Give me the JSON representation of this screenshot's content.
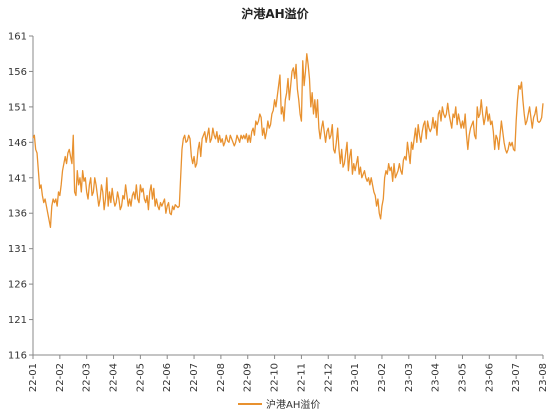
{
  "chart_data": {
    "type": "line",
    "title": "沪港AH溢价",
    "xlabel": "",
    "ylabel": "",
    "ylim": [
      116,
      161
    ],
    "y_ticks": [
      116,
      121,
      126,
      131,
      136,
      141,
      146,
      151,
      156,
      161
    ],
    "x_ticks": [
      "22-01",
      "22-02",
      "22-03",
      "22-04",
      "22-05",
      "22-06",
      "22-07",
      "22-08",
      "22-09",
      "22-10",
      "22-11",
      "22-12",
      "23-01",
      "23-02",
      "23-03",
      "23-04",
      "23-05",
      "23-06",
      "23-07",
      "23-08"
    ],
    "grid": false,
    "legend_position": "bottom-center",
    "series": [
      {
        "name": "沪港AH溢价",
        "color": "#E8912F",
        "x": [
          0,
          0.05,
          0.1,
          0.15,
          0.2,
          0.25,
          0.3,
          0.35,
          0.4,
          0.45,
          0.5,
          0.55,
          0.6,
          0.65,
          0.7,
          0.75,
          0.8,
          0.85,
          0.9,
          0.95,
          1.0,
          1.05,
          1.1,
          1.15,
          1.2,
          1.25,
          1.3,
          1.35,
          1.4,
          1.45,
          1.5,
          1.55,
          1.6,
          1.65,
          1.7,
          1.75,
          1.8,
          1.85,
          1.9,
          1.95,
          2.0,
          2.05,
          2.1,
          2.15,
          2.2,
          2.25,
          2.3,
          2.35,
          2.4,
          2.45,
          2.5,
          2.55,
          2.6,
          2.65,
          2.7,
          2.75,
          2.8,
          2.85,
          2.9,
          2.95,
          3.0,
          3.05,
          3.1,
          3.15,
          3.2,
          3.25,
          3.3,
          3.35,
          3.4,
          3.45,
          3.5,
          3.55,
          3.6,
          3.65,
          3.7,
          3.75,
          3.8,
          3.85,
          3.9,
          3.95,
          4.0,
          4.05,
          4.1,
          4.15,
          4.2,
          4.25,
          4.3,
          4.35,
          4.4,
          4.45,
          4.5,
          4.55,
          4.6,
          4.65,
          4.7,
          4.75,
          4.8,
          4.85,
          4.9,
          4.95,
          5.0,
          5.05,
          5.1,
          5.15,
          5.2,
          5.25,
          5.3,
          5.35,
          5.4,
          5.45,
          5.5,
          5.55,
          5.6,
          5.65,
          5.7,
          5.75,
          5.8,
          5.85,
          5.9,
          5.95,
          6.0,
          6.05,
          6.1,
          6.15,
          6.2,
          6.25,
          6.3,
          6.35,
          6.4,
          6.45,
          6.5,
          6.55,
          6.6,
          6.65,
          6.7,
          6.75,
          6.8,
          6.85,
          6.9,
          6.95,
          7.0,
          7.05,
          7.1,
          7.15,
          7.2,
          7.25,
          7.3,
          7.35,
          7.4,
          7.45,
          7.5,
          7.55,
          7.6,
          7.65,
          7.7,
          7.75,
          7.8,
          7.85,
          7.9,
          7.95,
          8.0,
          8.05,
          8.1,
          8.15,
          8.2,
          8.25,
          8.3,
          8.35,
          8.4,
          8.45,
          8.5,
          8.55,
          8.6,
          8.65,
          8.7,
          8.75,
          8.8,
          8.85,
          8.9,
          8.95,
          9.0,
          9.05,
          9.1,
          9.15,
          9.2,
          9.25,
          9.3,
          9.35,
          9.4,
          9.45,
          9.5,
          9.55,
          9.6,
          9.65,
          9.7,
          9.75,
          9.8,
          9.85,
          9.9,
          9.95,
          10.0,
          10.05,
          10.1,
          10.15,
          10.2,
          10.25,
          10.3,
          10.35,
          10.4,
          10.45,
          10.5,
          10.55,
          10.6,
          10.65,
          10.7,
          10.75,
          10.8,
          10.85,
          10.9,
          10.95,
          11.0,
          11.05,
          11.1,
          11.15,
          11.2,
          11.25,
          11.3,
          11.35,
          11.4,
          11.45,
          11.5,
          11.55,
          11.6,
          11.65,
          11.7,
          11.75,
          11.8,
          11.85,
          11.9,
          11.95,
          12.0,
          12.05,
          12.1,
          12.15,
          12.2,
          12.25,
          12.3,
          12.35,
          12.4,
          12.45,
          12.5,
          12.55,
          12.6,
          12.65,
          12.7,
          12.75,
          12.8,
          12.85,
          12.9,
          12.95,
          13.0,
          13.05,
          13.1,
          13.15,
          13.2,
          13.25,
          13.3,
          13.35,
          13.4,
          13.45,
          13.5,
          13.55,
          13.6,
          13.65,
          13.7,
          13.75,
          13.8,
          13.85,
          13.9,
          13.95,
          14.0,
          14.05,
          14.1,
          14.15,
          14.2,
          14.25,
          14.3,
          14.35,
          14.4,
          14.45,
          14.5,
          14.55,
          14.6,
          14.65,
          14.7,
          14.75,
          14.8,
          14.85,
          14.9,
          14.95,
          15.0,
          15.05,
          15.1,
          15.15,
          15.2,
          15.25,
          15.3,
          15.35,
          15.4,
          15.45,
          15.5,
          15.55,
          15.6,
          15.65,
          15.7,
          15.75,
          15.8,
          15.85,
          15.9,
          15.95,
          16.0,
          16.05,
          16.1,
          16.15,
          16.2,
          16.25,
          16.3,
          16.35,
          16.4,
          16.45,
          16.5,
          16.55,
          16.6,
          16.65,
          16.7,
          16.75,
          16.8,
          16.85,
          16.9,
          16.95,
          17.0,
          17.05,
          17.1,
          17.15,
          17.2,
          17.25,
          17.3,
          17.35,
          17.4,
          17.45,
          17.5,
          17.55,
          17.6,
          17.65,
          17.7,
          17.75,
          17.8,
          17.85,
          17.9,
          17.95,
          18.0,
          18.05,
          18.1,
          18.15,
          18.2,
          18.25,
          18.3,
          18.35,
          18.4,
          18.45,
          18.5,
          18.55,
          18.6,
          18.65,
          18.7,
          18.75,
          18.8,
          18.85,
          18.9,
          18.95,
          19.0
        ],
        "values": [
          146.6,
          147,
          145,
          144.5,
          142,
          139.5,
          140,
          138.5,
          137.5,
          138,
          137,
          136,
          135,
          134,
          137,
          138,
          137.5,
          138,
          137,
          139,
          138.5,
          140,
          142,
          143,
          144,
          143,
          144.5,
          145,
          144,
          143,
          147,
          139,
          138.5,
          142,
          140,
          141,
          139,
          142,
          140.5,
          141,
          139,
          138,
          140,
          141,
          138.5,
          139,
          141,
          140,
          138.5,
          137,
          138,
          140,
          139,
          136.5,
          138,
          141,
          137,
          139,
          137.5,
          139.5,
          138,
          137,
          137.5,
          139,
          138,
          136.5,
          137,
          138.5,
          138,
          140,
          138.5,
          137,
          138,
          137,
          138.5,
          139,
          138,
          140,
          138,
          137.5,
          140,
          139,
          139.5,
          138,
          137.5,
          138.5,
          136.5,
          139,
          140,
          138,
          139.5,
          137,
          138,
          137,
          136.5,
          137.5,
          137,
          137.5,
          138,
          136,
          137,
          137.5,
          136,
          135.8,
          137,
          136.5,
          137.2,
          137,
          136.8,
          137,
          141,
          145,
          146.5,
          147,
          146,
          146.2,
          147,
          146.5,
          144,
          143,
          144,
          142.5,
          143,
          145,
          146,
          144,
          146.5,
          147,
          147.5,
          146,
          147,
          148,
          146,
          146.5,
          148,
          147,
          146.5,
          147.5,
          146,
          147,
          146,
          146.5,
          145.5,
          146,
          147,
          146.2,
          146,
          147,
          146.5,
          146,
          145.5,
          146,
          147,
          146.5,
          146,
          147,
          146.5,
          147,
          146.5,
          147.2,
          146,
          147,
          146,
          147.5,
          148,
          147,
          149,
          148.5,
          149,
          150,
          149.5,
          147,
          148,
          146.5,
          147.5,
          149,
          148,
          148.5,
          150,
          150.5,
          152,
          151,
          152.5,
          154,
          155.5,
          150,
          151,
          149,
          152,
          153,
          155,
          152,
          154,
          156,
          156.5,
          155,
          157,
          153.5,
          152,
          150,
          149,
          157.5,
          154,
          156,
          158.5,
          157,
          155,
          151,
          153,
          150,
          152,
          149.5,
          152,
          148,
          146.5,
          148,
          149,
          147.5,
          146,
          147.5,
          148,
          146.5,
          147,
          148.5,
          145,
          144.5,
          146,
          148,
          145,
          143,
          145,
          142.5,
          143,
          144.5,
          146,
          142,
          144,
          145,
          141.5,
          143,
          142,
          143,
          144,
          141.5,
          142.5,
          141,
          141.5,
          142,
          141,
          140.5,
          141,
          140,
          141,
          140,
          139,
          138.5,
          137,
          138,
          136,
          135.2,
          137,
          138,
          141,
          142,
          141.5,
          143,
          142,
          142.5,
          140.5,
          143,
          141,
          141.5,
          142,
          143,
          142,
          141.5,
          143.5,
          144,
          143.5,
          146,
          144.5,
          143,
          146,
          145,
          146.5,
          148,
          146,
          148.5,
          147,
          146,
          147.5,
          148.5,
          149,
          146.5,
          149,
          148,
          147.5,
          148,
          149.5,
          148,
          149,
          147,
          150,
          150.5,
          149,
          151,
          150,
          149.5,
          150,
          151.5,
          150,
          149,
          148,
          150,
          149.5,
          151,
          148.5,
          150,
          149,
          148,
          149,
          148,
          150,
          147,
          145,
          147,
          148,
          148.5,
          149,
          147,
          146.5,
          151,
          149.5,
          150,
          152,
          150,
          148.5,
          149.5,
          151,
          149,
          150,
          148.5,
          149,
          147.5,
          145,
          147,
          146.5,
          145,
          147,
          149,
          147.5,
          146,
          145,
          144.5,
          145,
          146,
          145.5,
          146,
          145,
          144.8,
          149,
          152,
          154,
          153.5,
          154.5,
          152,
          150,
          148.5,
          149,
          150,
          151,
          149.5,
          148,
          149.5,
          150,
          151,
          149,
          148.8,
          149,
          149.5,
          151.5
        ]
      }
    ]
  }
}
